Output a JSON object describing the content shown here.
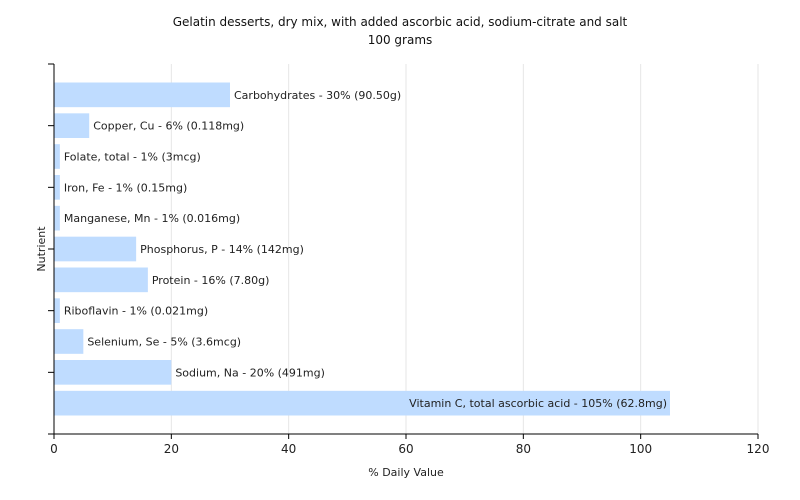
{
  "chart_data": {
    "type": "bar",
    "orientation": "horizontal",
    "title": "Gelatin desserts, dry mix, with added ascorbic acid, sodium-citrate and salt",
    "subtitle": "100 grams",
    "xlabel": "% Daily Value",
    "ylabel": "Nutrient",
    "xlim": [
      0,
      120
    ],
    "xticks": [
      0,
      20,
      40,
      60,
      80,
      100,
      120
    ],
    "grid": true,
    "bar_color": "#bfdcff",
    "categories": [
      "Carbohydrates",
      "Copper, Cu",
      "Folate, total",
      "Iron, Fe",
      "Manganese, Mn",
      "Phosphorus, P",
      "Protein",
      "Riboflavin",
      "Selenium, Se",
      "Sodium, Na",
      "Vitamin C, total ascorbic acid"
    ],
    "values": [
      30,
      6,
      1,
      1,
      1,
      14,
      16,
      1,
      5,
      20,
      105
    ],
    "labels": [
      "Carbohydrates - 30% (90.50g)",
      "Copper, Cu - 6% (0.118mg)",
      "Folate, total - 1% (3mcg)",
      "Iron, Fe - 1% (0.15mg)",
      "Manganese, Mn - 1% (0.016mg)",
      "Phosphorus, P - 14% (142mg)",
      "Protein - 16% (7.80g)",
      "Riboflavin - 1% (0.021mg)",
      "Selenium, Se - 5% (3.6mcg)",
      "Sodium, Na - 20% (491mg)",
      "Vitamin C, total ascorbic acid - 105% (62.8mg)"
    ]
  }
}
